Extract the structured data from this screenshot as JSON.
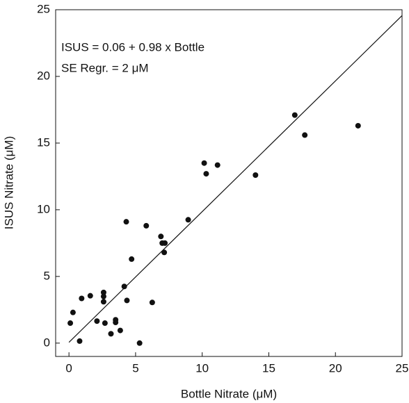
{
  "chart_data": {
    "type": "scatter",
    "x_label": "Bottle Nitrate (μM)",
    "y_label": "ISUS Nitrate (μM)",
    "annotations": [
      "ISUS = 0.06 + 0.98 x Bottle",
      "SE Regr. = 2 μM"
    ],
    "xlim": [
      -1,
      25
    ],
    "ylim": [
      -1,
      25
    ],
    "xticks": [
      0,
      5,
      10,
      15,
      20,
      25
    ],
    "yticks": [
      0,
      5,
      10,
      15,
      20,
      25
    ],
    "color": "#111111",
    "x": [
      0.1,
      0.3,
      0.95,
      0.8,
      1.6,
      2.1,
      2.6,
      2.6,
      2.6,
      2.7,
      3.15,
      3.5,
      3.5,
      3.85,
      4.15,
      4.35,
      4.3,
      4.7,
      5.3,
      5.8,
      6.25,
      6.9,
      7.0,
      7.2,
      7.15,
      8.95,
      10.15,
      10.3,
      11.15,
      14.0,
      16.95,
      17.7,
      21.7
    ],
    "values": [
      1.5,
      2.3,
      3.35,
      0.15,
      3.55,
      1.65,
      3.8,
      3.5,
      3.1,
      1.5,
      0.7,
      1.75,
      1.55,
      0.95,
      4.25,
      3.2,
      9.1,
      6.3,
      0.0,
      8.8,
      3.05,
      8.0,
      7.5,
      7.5,
      6.8,
      9.25,
      13.5,
      12.7,
      13.35,
      12.6,
      17.1,
      15.6,
      16.3
    ],
    "fit_line": {
      "x": [
        0,
        25
      ],
      "values": [
        0.06,
        24.56
      ]
    }
  }
}
